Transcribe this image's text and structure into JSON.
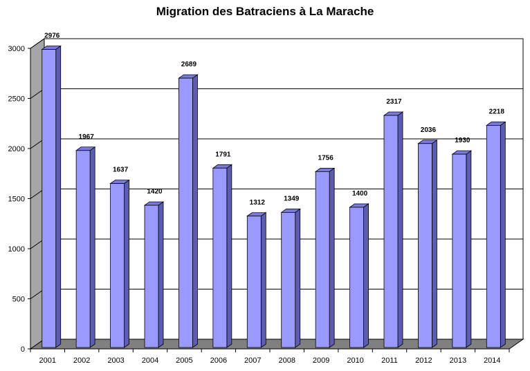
{
  "chart_data": {
    "type": "bar",
    "title": "Migration des Batraciens à La Marache",
    "xlabel": "",
    "ylabel": "",
    "categories": [
      "2001",
      "2002",
      "2003",
      "2004",
      "2005",
      "2006",
      "2007",
      "2008",
      "2009",
      "2010",
      "2011",
      "2012",
      "2013",
      "2014"
    ],
    "values": [
      2976,
      1967,
      1637,
      1420,
      2689,
      1791,
      1312,
      1349,
      1756,
      1400,
      2317,
      2036,
      1930,
      2218
    ],
    "ylim": [
      0,
      3000
    ],
    "yticks": [
      0,
      500,
      1000,
      1500,
      2000,
      2500,
      3000
    ],
    "grid": true,
    "style": "3d",
    "colors": {
      "bar_front": "#9999ff",
      "bar_side": "#5c5cb0",
      "bar_top": "#7b7bd6",
      "wall": "#ffffff",
      "side_wall": "#a6a6a6",
      "floor": "#808080"
    }
  }
}
